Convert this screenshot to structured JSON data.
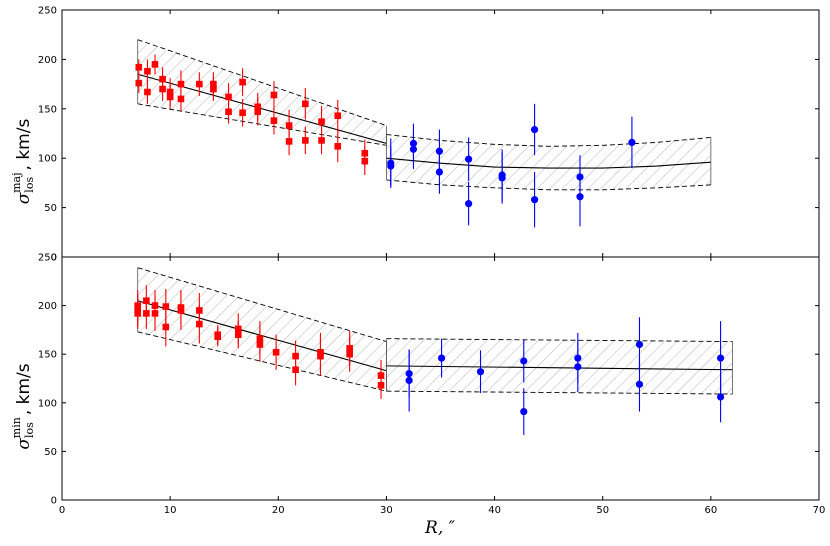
{
  "chart_data": [
    {
      "type": "scatter",
      "panel": "top",
      "ylabel": {
        "symbol": "σ",
        "sup": "maj",
        "sub": "los",
        "unit": ", km/s"
      },
      "xlim": [
        0,
        70
      ],
      "ylim": [
        0,
        250
      ],
      "xticks": [
        "0",
        "10",
        "20",
        "30",
        "40",
        "50",
        "60",
        "70"
      ],
      "yticks": [
        "0",
        "50",
        "100",
        "150",
        "200",
        "250"
      ],
      "band_inner": {
        "x": [
          7,
          30
        ],
        "lower": [
          155,
          113
        ],
        "mid": [
          185,
          115
        ],
        "upper": [
          220,
          133
        ]
      },
      "band_outer": {
        "x": [
          30,
          35,
          40,
          45,
          50,
          55,
          60
        ],
        "lower": [
          78,
          73,
          70,
          68,
          68,
          70,
          73
        ],
        "mid": [
          100,
          95,
          91,
          90,
          90,
          92,
          96
        ],
        "upper": [
          124,
          118,
          114,
          112,
          113,
          116,
          121
        ]
      },
      "band_outer_right_edge": [
        60,
        76,
        121
      ],
      "series": [
        {
          "name": "red",
          "color": "#ff0000",
          "marker": "square",
          "points": [
            [
              7.1,
              192,
              8
            ],
            [
              7.1,
              176,
              10
            ],
            [
              7.9,
              188,
              12
            ],
            [
              7.9,
              167,
              12
            ],
            [
              8.6,
              195,
              10
            ],
            [
              9.3,
              180,
              12
            ],
            [
              9.3,
              170,
              12
            ],
            [
              10.0,
              167,
              14
            ],
            [
              10.0,
              162,
              12
            ],
            [
              11.0,
              175,
              14
            ],
            [
              11.0,
              160,
              12
            ],
            [
              12.7,
              175,
              12
            ],
            [
              14.0,
              175,
              12
            ],
            [
              14.0,
              170,
              12
            ],
            [
              15.4,
              162,
              14
            ],
            [
              15.4,
              147,
              12
            ],
            [
              16.7,
              177,
              14
            ],
            [
              16.7,
              146,
              14
            ],
            [
              18.1,
              152,
              14
            ],
            [
              18.1,
              147,
              14
            ],
            [
              19.6,
              164,
              14
            ],
            [
              19.6,
              138,
              14
            ],
            [
              21.0,
              133,
              16
            ],
            [
              21.0,
              117,
              14
            ],
            [
              22.5,
              155,
              16
            ],
            [
              22.5,
              118,
              14
            ],
            [
              24.0,
              137,
              16
            ],
            [
              24.0,
              118,
              14
            ],
            [
              25.5,
              143,
              16
            ],
            [
              25.5,
              112,
              16
            ],
            [
              28.0,
              105,
              14
            ],
            [
              28.0,
              97,
              14
            ]
          ]
        },
        {
          "name": "blue",
          "color": "#0000ff",
          "marker": "circle",
          "points": [
            [
              30.4,
              95,
              25
            ],
            [
              30.4,
              92,
              20
            ],
            [
              32.5,
              115,
              20
            ],
            [
              32.5,
              109,
              20
            ],
            [
              34.9,
              107,
              22
            ],
            [
              34.9,
              86,
              22
            ],
            [
              37.6,
              99,
              22
            ],
            [
              37.6,
              54,
              22
            ],
            [
              40.7,
              83,
              26
            ],
            [
              40.7,
              80,
              26
            ],
            [
              43.7,
              129,
              26
            ],
            [
              43.7,
              58,
              28
            ],
            [
              47.9,
              81,
              22
            ],
            [
              47.9,
              61,
              30
            ],
            [
              52.7,
              116,
              26
            ]
          ]
        }
      ]
    },
    {
      "type": "scatter",
      "panel": "bottom",
      "xlabel": "R, ″",
      "ylabel": {
        "symbol": "σ",
        "sup": "min",
        "sub": "los",
        "unit": ", km/s"
      },
      "xlim": [
        0,
        70
      ],
      "ylim": [
        0,
        250
      ],
      "xticks": [
        "0",
        "10",
        "20",
        "30",
        "40",
        "50",
        "60",
        "70"
      ],
      "yticks": [
        "0",
        "50",
        "100",
        "150",
        "200",
        "250"
      ],
      "band_inner": {
        "x": [
          7,
          30
        ],
        "lower": [
          173,
          112
        ],
        "mid": [
          205,
          133
        ],
        "upper": [
          239,
          163
        ]
      },
      "band_outer": {
        "x": [
          30,
          62
        ],
        "lower": [
          112,
          109
        ],
        "mid": [
          138,
          134
        ],
        "upper": [
          166,
          163
        ]
      },
      "series": [
        {
          "name": "red",
          "color": "#ff0000",
          "marker": "square",
          "points": [
            [
              7.0,
              200,
              16
            ],
            [
              7.0,
              195,
              16
            ],
            [
              7.0,
              192,
              16
            ],
            [
              7.8,
              205,
              16
            ],
            [
              7.8,
              192,
              16
            ],
            [
              8.6,
              192,
              18
            ],
            [
              8.6,
              200,
              16
            ],
            [
              9.6,
              199,
              18
            ],
            [
              9.6,
              178,
              20
            ],
            [
              11.0,
              198,
              18
            ],
            [
              11.0,
              195,
              20
            ],
            [
              12.7,
              195,
              18
            ],
            [
              12.7,
              181,
              20
            ],
            [
              14.4,
              170,
              10
            ],
            [
              14.4,
              168,
              10
            ],
            [
              16.3,
              176,
              16
            ],
            [
              16.3,
              170,
              14
            ],
            [
              18.3,
              166,
              18
            ],
            [
              18.3,
              160,
              18
            ],
            [
              19.8,
              152,
              18
            ],
            [
              21.6,
              148,
              16
            ],
            [
              21.6,
              134,
              16
            ],
            [
              23.9,
              152,
              20
            ],
            [
              23.9,
              148,
              20
            ],
            [
              26.6,
              156,
              18
            ],
            [
              26.6,
              150,
              18
            ],
            [
              29.5,
              128,
              16
            ],
            [
              29.5,
              118,
              14
            ]
          ]
        },
        {
          "name": "blue",
          "color": "#0000ff",
          "marker": "circle",
          "points": [
            [
              32.1,
              130,
              24
            ],
            [
              32.1,
              123,
              32
            ],
            [
              35.1,
              146,
              20
            ],
            [
              38.7,
              132,
              22
            ],
            [
              42.7,
              143,
              22
            ],
            [
              42.7,
              91,
              24
            ],
            [
              47.7,
              146,
              26
            ],
            [
              47.7,
              137,
              26
            ],
            [
              53.4,
              160,
              28
            ],
            [
              53.4,
              119,
              28
            ],
            [
              60.9,
              146,
              38
            ],
            [
              60.9,
              106,
              26
            ]
          ]
        }
      ]
    }
  ]
}
